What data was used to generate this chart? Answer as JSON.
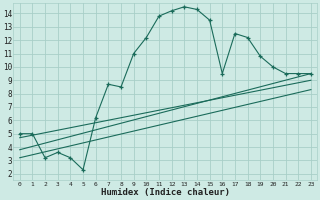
{
  "xlabel": "Humidex (Indice chaleur)",
  "bg_color": "#ceeae4",
  "grid_color": "#a8cfc8",
  "line_color": "#1a6b5a",
  "xlim": [
    -0.5,
    23.5
  ],
  "ylim": [
    1.5,
    14.8
  ],
  "xticks": [
    0,
    1,
    2,
    3,
    4,
    5,
    6,
    7,
    8,
    9,
    10,
    11,
    12,
    13,
    14,
    15,
    16,
    17,
    18,
    19,
    20,
    21,
    22,
    23
  ],
  "yticks": [
    2,
    3,
    4,
    5,
    6,
    7,
    8,
    9,
    10,
    11,
    12,
    13,
    14
  ],
  "main_x": [
    0,
    1,
    2,
    3,
    4,
    5,
    6,
    7,
    8,
    9,
    10,
    11,
    12,
    13,
    14,
    15,
    16,
    17,
    18,
    19,
    20,
    21,
    22,
    23
  ],
  "main_y": [
    5.0,
    5.0,
    3.2,
    3.6,
    3.2,
    2.3,
    6.2,
    8.7,
    8.5,
    11.0,
    12.2,
    13.8,
    14.2,
    14.5,
    14.3,
    13.5,
    9.5,
    12.5,
    12.2,
    10.8,
    10.0,
    9.5,
    9.5,
    9.5
  ],
  "line1_x": [
    0,
    23
  ],
  "line1_y": [
    3.8,
    9.5
  ],
  "line2_x": [
    0,
    23
  ],
  "line2_y": [
    4.7,
    9.0
  ],
  "line3_x": [
    0,
    23
  ],
  "line3_y": [
    3.2,
    8.3
  ]
}
